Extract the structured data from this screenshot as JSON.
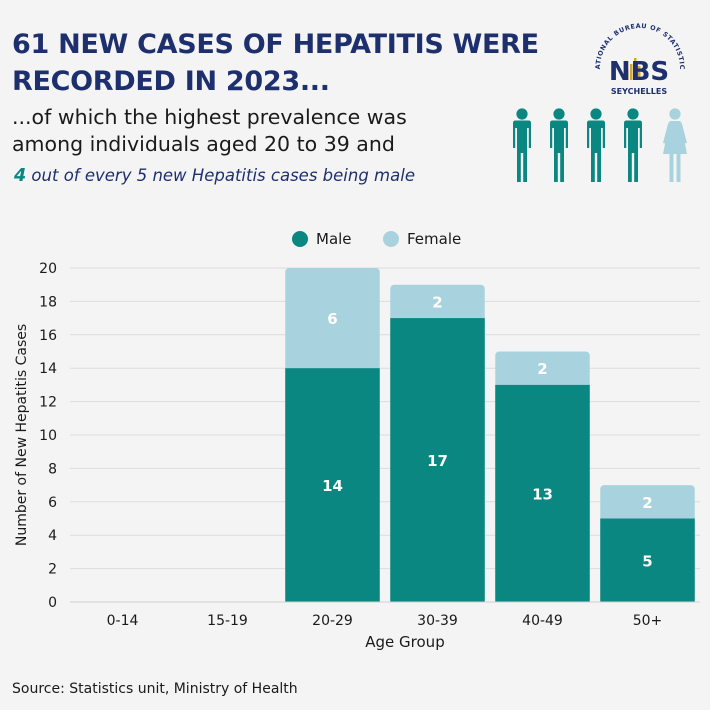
{
  "header": {
    "title_line1": "61 NEW CASES OF HEPATITIS WERE",
    "title_line2": "RECORDED IN 2023...",
    "subtitle_line1": "...of which the highest prevalence was",
    "subtitle_line2": "among individuals aged 20 to 39 and",
    "highlight_number": "4",
    "highlight_rest": " out of every 5 new Hepatitis cases being male"
  },
  "logo": {
    "arc_text": "NATIONAL BUREAU OF STATISTICS",
    "letters": "NBS",
    "country": "SEYCHELLES"
  },
  "people_icons": {
    "male_count": 4,
    "female_count": 1,
    "male_color": "#0b8781",
    "female_color": "#a8d3de"
  },
  "chart_data": {
    "type": "bar",
    "stacked": true,
    "categories": [
      "0-14",
      "15-19",
      "20-29",
      "30-39",
      "40-49",
      "50+"
    ],
    "series": [
      {
        "name": "Male",
        "color": "#0b8781",
        "values": [
          0,
          0,
          14,
          17,
          13,
          5
        ]
      },
      {
        "name": "Female",
        "color": "#a8d3de",
        "values": [
          0,
          0,
          6,
          2,
          2,
          2
        ]
      }
    ],
    "xlabel": "Age Group",
    "ylabel": "Number of New Hepatitis Cases",
    "ylim": [
      0,
      20
    ],
    "yticks": [
      0,
      2,
      4,
      6,
      8,
      10,
      12,
      14,
      16,
      18,
      20
    ],
    "grid": true,
    "legend_position": "top-center"
  },
  "footer": {
    "source": "Source: Statistics unit, Ministry of Health"
  }
}
